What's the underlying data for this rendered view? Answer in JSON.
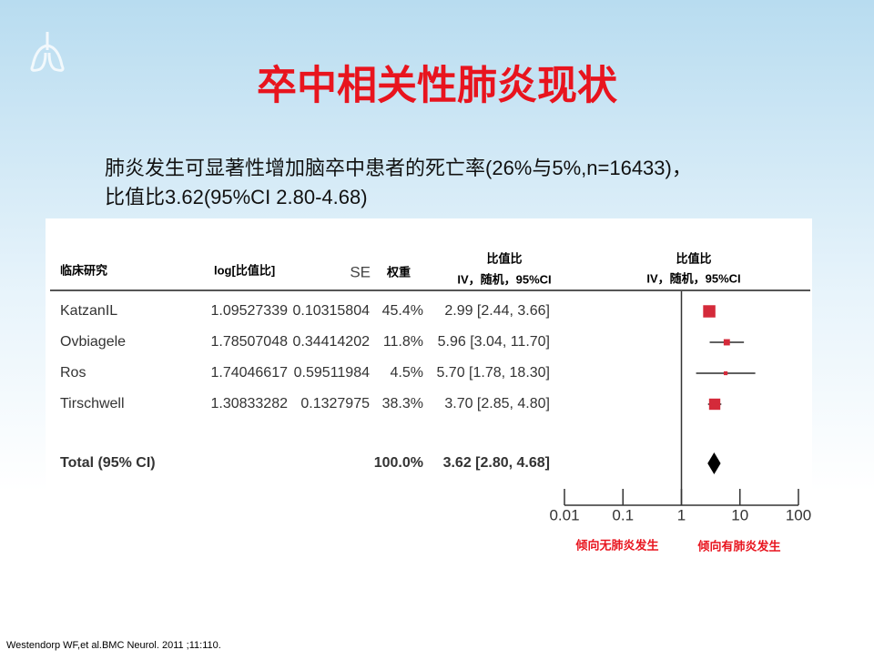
{
  "title": "卒中相关性肺炎现状",
  "body": [
    "肺炎发生可显著性增加脑卒中患者的死亡率(26%与5%,n=16433)，",
    "比值比3.62(95%CI 2.80-4.68)"
  ],
  "chart_data": {
    "type": "forest",
    "headers": {
      "study": "临床研究",
      "log_or": "log[比值比]",
      "se": "SE",
      "weight": "权重",
      "or_title": "比值比",
      "or_method": "IV，随机，95%CI",
      "plot_title": "比值比",
      "plot_method": "IV，随机，95%CI"
    },
    "studies": [
      {
        "name": "KatzanIL",
        "log_or": 1.09527339,
        "se": 0.10315804,
        "weight": 45.4,
        "weight_label": "45.4%",
        "or": 2.99,
        "lower": 2.44,
        "upper": 3.66,
        "or_label": "2.99 [2.44, 3.66]"
      },
      {
        "name": "Ovbiagele",
        "log_or": 1.78507048,
        "se": 0.34414202,
        "weight": 11.8,
        "weight_label": "11.8%",
        "or": 5.96,
        "lower": 3.04,
        "upper": 11.7,
        "or_label": "5.96 [3.04, 11.70]"
      },
      {
        "name": "Ros",
        "log_or": 1.74046617,
        "se": 0.59511984,
        "weight": 4.5,
        "weight_label": "4.5%",
        "or": 5.7,
        "lower": 1.78,
        "upper": 18.3,
        "or_label": "5.70 [1.78, 18.30]"
      },
      {
        "name": "Tirschwell",
        "log_or": 1.30833282,
        "se": 0.1327975,
        "weight": 38.3,
        "weight_label": "38.3%",
        "or": 3.7,
        "lower": 2.85,
        "upper": 4.8,
        "or_label": "3.70 [2.85, 4.80]"
      }
    ],
    "total": {
      "name": "Total (95% CI)",
      "weight": 100.0,
      "weight_label": "100.0%",
      "or": 3.62,
      "lower": 2.8,
      "upper": 4.68,
      "or_label": "3.62 [2.80, 4.68]"
    },
    "xscale": "log",
    "xlim": [
      0.01,
      100
    ],
    "xticks": [
      0.01,
      0.1,
      1,
      10,
      100
    ],
    "marker_color": "#d42a3a",
    "direction_labels": [
      "倾向无肺炎发生",
      "倾向有肺炎发生"
    ]
  },
  "footer": "Westendorp WF,et al.BMC Neurol. 2011 ;11:110."
}
